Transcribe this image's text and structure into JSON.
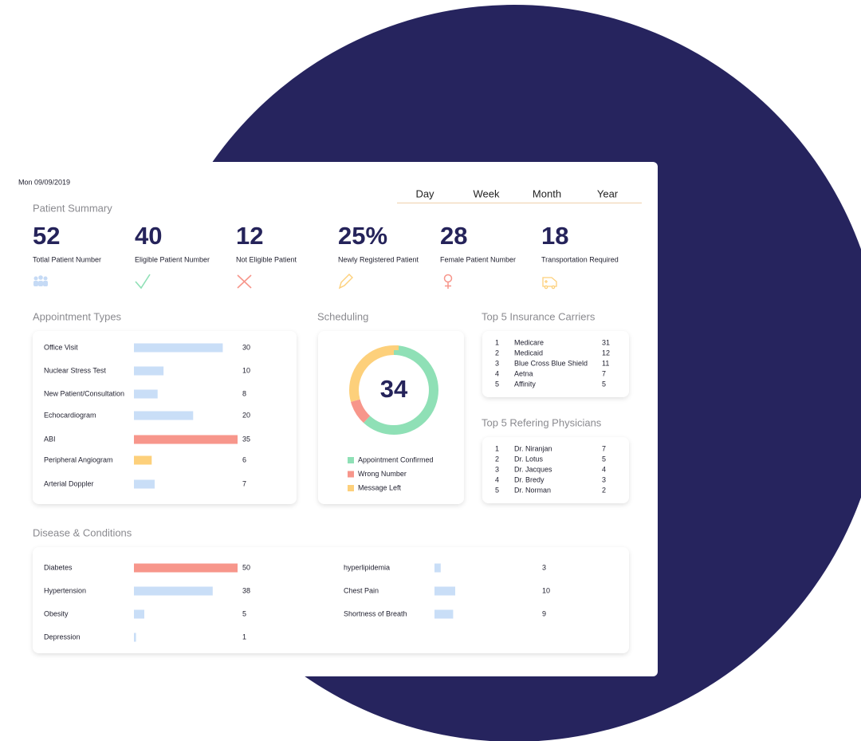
{
  "date": "Mon 09/09/2019",
  "periods": [
    "Day",
    "Week",
    "Month",
    "Year"
  ],
  "patient_summary": {
    "title": "Patient Summary",
    "stats": [
      {
        "value": "52",
        "label": "Totlal Patient Number"
      },
      {
        "value": "40",
        "label": "Eligible Patient Number"
      },
      {
        "value": "12",
        "label": "Not Eligible Patient"
      },
      {
        "value": "25%",
        "label": "Newly Registered Patient"
      },
      {
        "value": "28",
        "label": "Female Patient Number"
      },
      {
        "value": "18",
        "label": "Transportation Required"
      }
    ]
  },
  "appointment_types": {
    "title": "Appointment Types",
    "items": [
      {
        "label": "Office Visit",
        "value": 30,
        "color": "#c9def7"
      },
      {
        "label": "Nuclear Stress Test",
        "value": 10,
        "color": "#c9def7"
      },
      {
        "label": "New Patient/Consultation",
        "value": 8,
        "color": "#c9def7"
      },
      {
        "label": "Echocardiogram",
        "value": 20,
        "color": "#c9def7"
      },
      {
        "label": "ABI",
        "value": 35,
        "color": "#f7968b"
      },
      {
        "label": "Peripheral Angiogram",
        "value": 6,
        "color": "#fdd07b"
      },
      {
        "label": "Arterial Doppler",
        "value": 7,
        "color": "#c9def7"
      }
    ]
  },
  "scheduling": {
    "title": "Scheduling",
    "total": 34,
    "segments": [
      {
        "name": "Appointment Confirmed",
        "value": 21,
        "color": "#8fe0b6"
      },
      {
        "name": "Wrong Number",
        "value": 3,
        "color": "#f7968b"
      },
      {
        "name": "Message Left",
        "value": 10,
        "color": "#fdd07b"
      }
    ]
  },
  "insurance_carriers": {
    "title": "Top 5 Insurance Carriers",
    "rows": [
      {
        "rank": 1,
        "name": "Medicare",
        "count": 31
      },
      {
        "rank": 2,
        "name": "Medicaid",
        "count": 12
      },
      {
        "rank": 3,
        "name": "Blue Cross Blue Shield",
        "count": 11
      },
      {
        "rank": 4,
        "name": "Aetna",
        "count": 7
      },
      {
        "rank": 5,
        "name": "Affinity",
        "count": 5
      }
    ]
  },
  "referring_physicians": {
    "title": "Top 5 Refering Physicians",
    "rows": [
      {
        "rank": 1,
        "name": "Dr. Niranjan",
        "count": 7
      },
      {
        "rank": 2,
        "name": "Dr. Lotus",
        "count": 5
      },
      {
        "rank": 3,
        "name": "Dr. Jacques",
        "count": 4
      },
      {
        "rank": 4,
        "name": "Dr. Bredy",
        "count": 3
      },
      {
        "rank": 5,
        "name": "Dr. Norman",
        "count": 2
      }
    ]
  },
  "diseases": {
    "title": "Disease & Conditions",
    "items": [
      {
        "label": "Diabetes",
        "value": 50,
        "color": "#f7968b"
      },
      {
        "label": "Hypertension",
        "value": 38,
        "color": "#c9def7"
      },
      {
        "label": "Obesity",
        "value": 5,
        "color": "#c9def7"
      },
      {
        "label": "Depression",
        "value": 1,
        "color": "#c9def7"
      },
      {
        "label": "hyperlipidemia",
        "value": 3,
        "color": "#c9def7"
      },
      {
        "label": "Chest Pain",
        "value": 10,
        "color": "#c9def7"
      },
      {
        "label": "Shortness of Breath",
        "value": 9,
        "color": "#c9def7"
      }
    ]
  }
}
